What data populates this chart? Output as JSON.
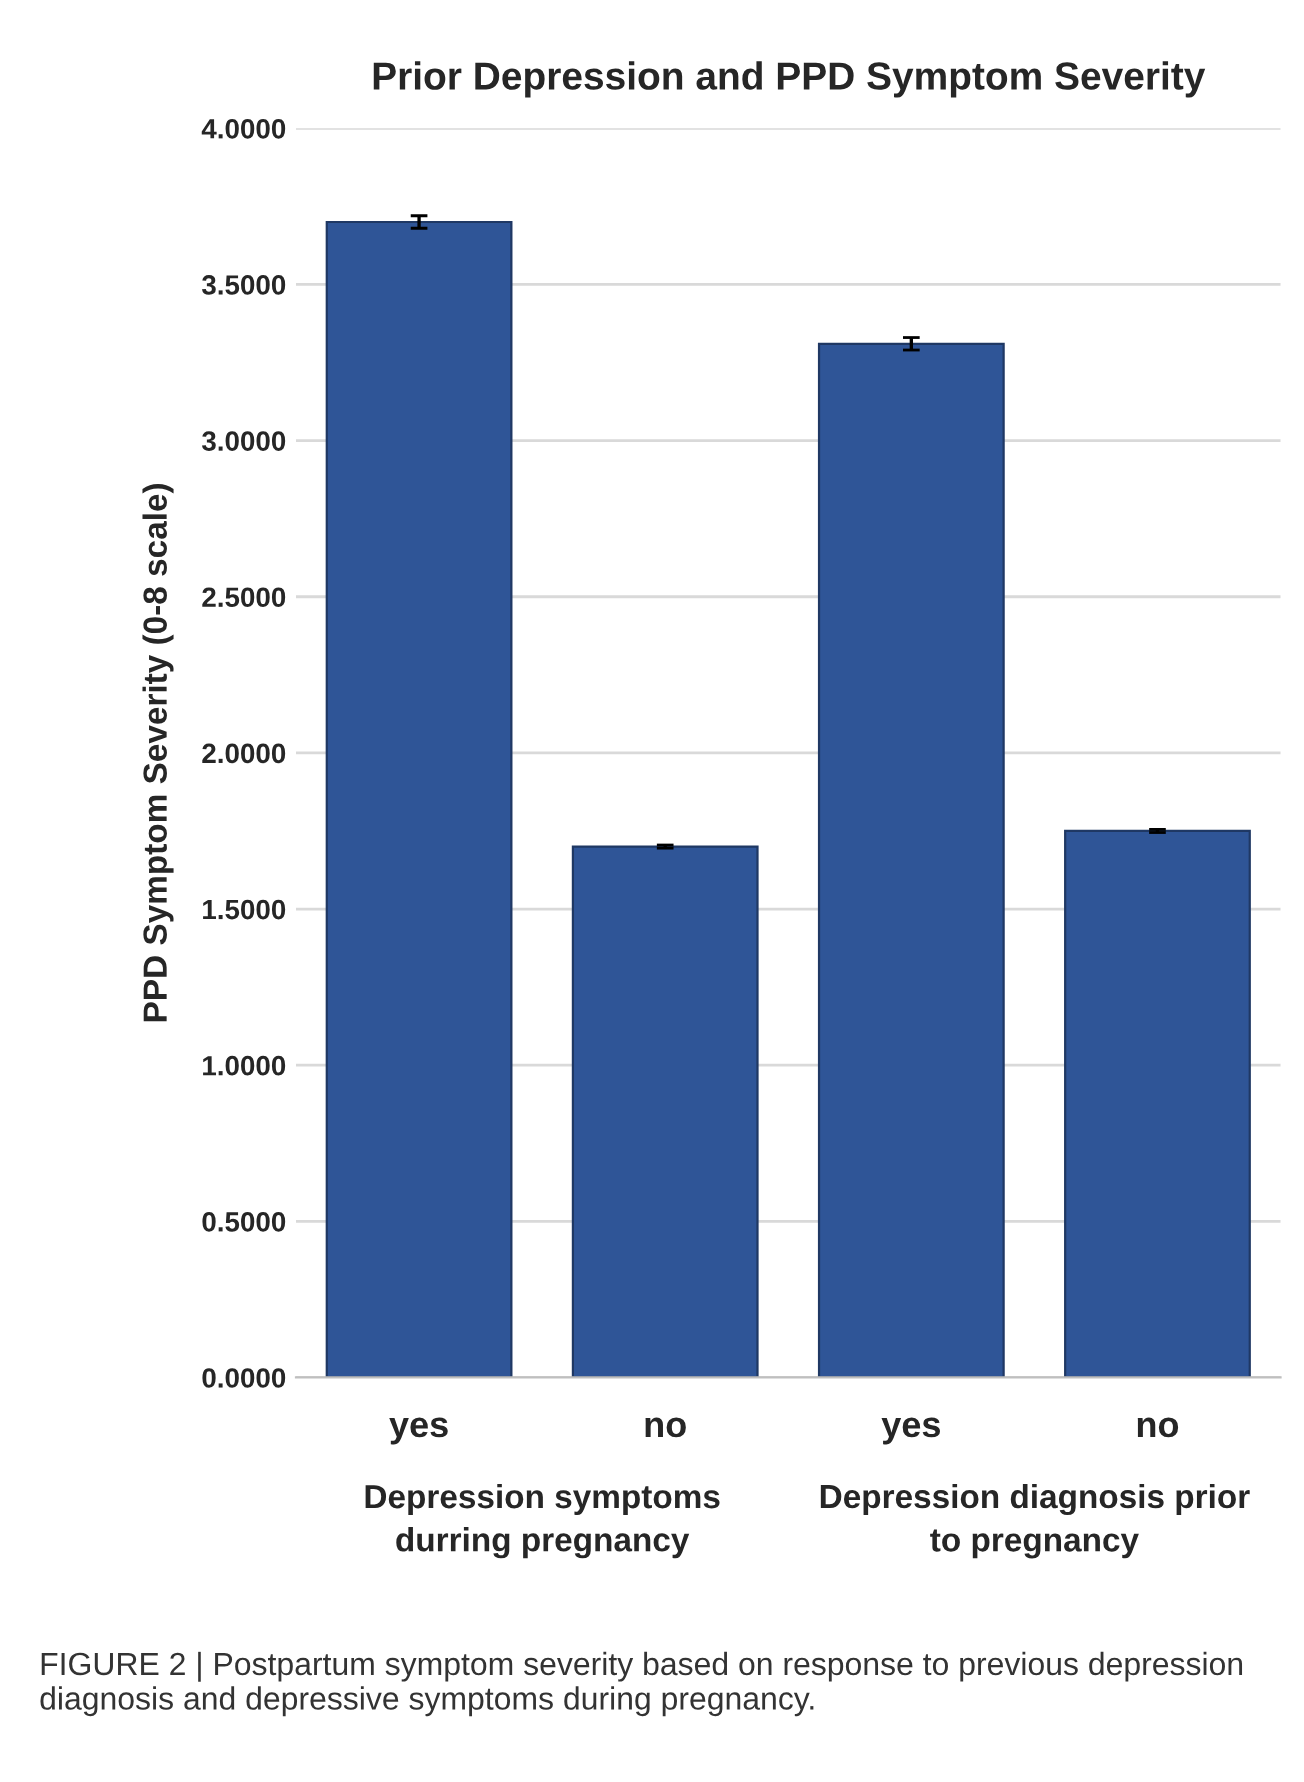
{
  "chart_data": {
    "type": "bar",
    "title": "Prior Depression and PPD Symptom Severity",
    "ylabel": "PPD Symptom Severity (0-8 scale)",
    "categories": [
      "yes",
      "no",
      "yes",
      "no"
    ],
    "values": [
      3.7,
      1.7,
      3.31,
      1.75
    ],
    "errors": [
      0.02,
      0.005,
      0.02,
      0.005
    ],
    "color": "#2f5597",
    "ylim": [
      0,
      4
    ],
    "yticks": [
      {
        "value": 0,
        "label": "0.0000"
      },
      {
        "value": 0.5,
        "label": "0.5000"
      },
      {
        "value": 1,
        "label": "1.0000"
      },
      {
        "value": 1.5,
        "label": "1.5000"
      },
      {
        "value": 2,
        "label": "2.0000"
      },
      {
        "value": 2.5,
        "label": "2.5000"
      },
      {
        "value": 3,
        "label": "3.0000"
      },
      {
        "value": 3.5,
        "label": "3.5000"
      },
      {
        "value": 4,
        "label": "4.0000"
      }
    ],
    "grid": "y",
    "annotations": [
      "Depression symptoms\ndurring pregnancy",
      "Depression diagnosis prior\nto pregnancy",
      "FIGURE 2 | Postpartum symptom severity based on response to previous depression diagnosis and depressive symptoms during pregnancy."
    ]
  }
}
